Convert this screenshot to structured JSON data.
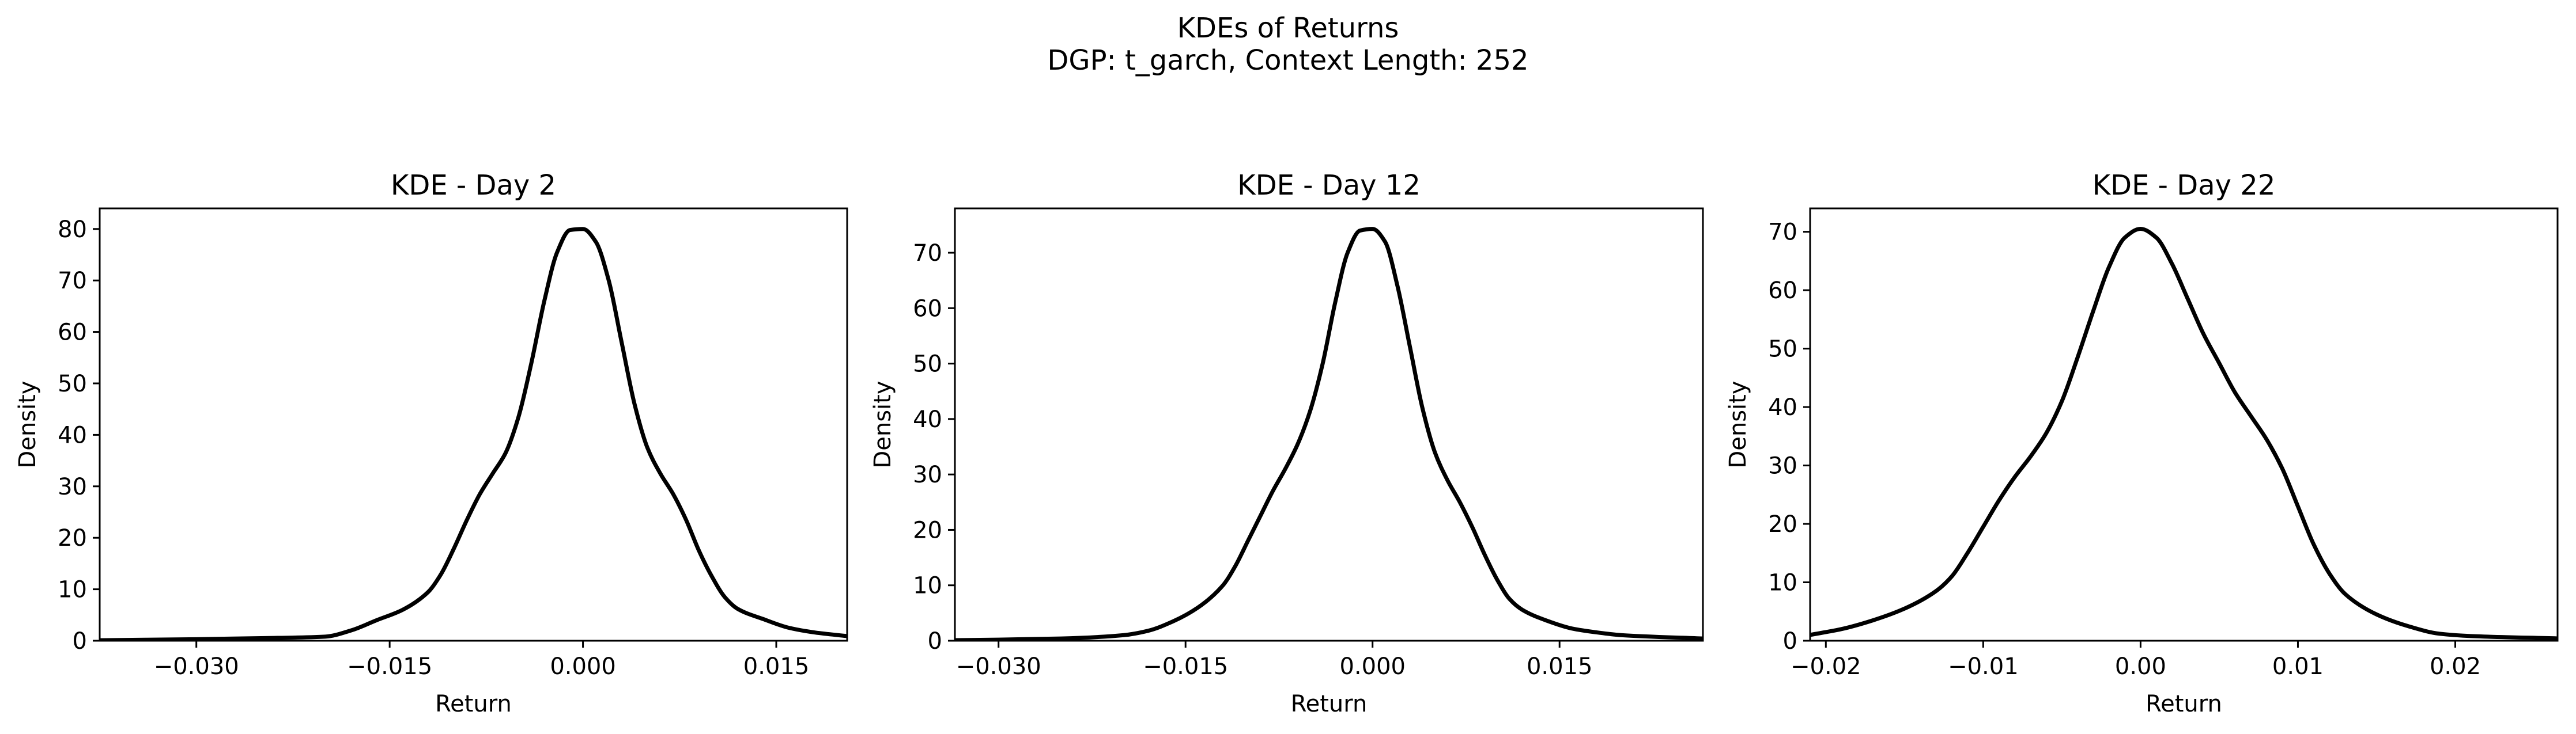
{
  "figure": {
    "title_line1": "KDEs of Returns",
    "title_line2": "DGP: t_garch, Context Length: 252"
  },
  "colors": {
    "line": "#000000",
    "background": "#ffffff"
  },
  "chart_data": [
    {
      "type": "line",
      "title": "KDE - Day 2",
      "xlabel": "Return",
      "ylabel": "Density",
      "xlim": [
        -0.0375,
        0.0205
      ],
      "ylim": [
        0,
        84
      ],
      "xticks": [
        {
          "value": -0.03,
          "label": "−0.030"
        },
        {
          "value": -0.015,
          "label": "−0.015"
        },
        {
          "value": 0.0,
          "label": "0.000"
        },
        {
          "value": 0.015,
          "label": "0.015"
        }
      ],
      "yticks": [
        {
          "value": 0,
          "label": "0"
        },
        {
          "value": 10,
          "label": "10"
        },
        {
          "value": 20,
          "label": "20"
        },
        {
          "value": 30,
          "label": "30"
        },
        {
          "value": 40,
          "label": "40"
        },
        {
          "value": 50,
          "label": "50"
        },
        {
          "value": 60,
          "label": "60"
        },
        {
          "value": 70,
          "label": "70"
        },
        {
          "value": 80,
          "label": "80"
        }
      ],
      "grid": false,
      "series": [
        {
          "x": [
            -0.0375,
            -0.03,
            -0.025,
            -0.02,
            -0.018,
            -0.016,
            -0.014,
            -0.012,
            -0.011,
            -0.01,
            -0.009,
            -0.008,
            -0.007,
            -0.006,
            -0.005,
            -0.004,
            -0.003,
            -0.002,
            -0.001,
            0.0,
            0.001,
            0.002,
            0.003,
            0.004,
            0.005,
            0.006,
            0.007,
            0.008,
            0.009,
            0.01,
            0.011,
            0.012,
            0.014,
            0.016,
            0.018,
            0.0205
          ],
          "y": [
            0.1,
            0.3,
            0.5,
            0.8,
            2.0,
            4.0,
            6.0,
            9.5,
            13,
            18,
            23.5,
            28.5,
            32.5,
            36.5,
            43.5,
            54,
            66,
            75.5,
            79.8,
            80,
            77.5,
            70,
            58,
            46,
            37.5,
            32.5,
            28.5,
            23.5,
            17.5,
            12.5,
            8.5,
            6.2,
            4.2,
            2.5,
            1.6,
            0.9
          ]
        }
      ]
    },
    {
      "type": "line",
      "title": "KDE - Day 12",
      "xlabel": "Return",
      "ylabel": "Density",
      "xlim": [
        -0.0335,
        0.0265
      ],
      "ylim": [
        0,
        78
      ],
      "xticks": [
        {
          "value": -0.03,
          "label": "−0.030"
        },
        {
          "value": -0.015,
          "label": "−0.015"
        },
        {
          "value": 0.0,
          "label": "0.000"
        },
        {
          "value": 0.015,
          "label": "0.015"
        }
      ],
      "yticks": [
        {
          "value": 0,
          "label": "0"
        },
        {
          "value": 10,
          "label": "10"
        },
        {
          "value": 20,
          "label": "20"
        },
        {
          "value": 30,
          "label": "30"
        },
        {
          "value": 40,
          "label": "40"
        },
        {
          "value": 50,
          "label": "50"
        },
        {
          "value": 60,
          "label": "60"
        },
        {
          "value": 70,
          "label": "70"
        }
      ],
      "grid": false,
      "series": [
        {
          "x": [
            -0.0335,
            -0.03,
            -0.025,
            -0.02,
            -0.018,
            -0.016,
            -0.014,
            -0.012,
            -0.011,
            -0.01,
            -0.009,
            -0.008,
            -0.007,
            -0.006,
            -0.005,
            -0.004,
            -0.003,
            -0.002,
            -0.001,
            0.0,
            0.001,
            0.002,
            0.003,
            0.004,
            0.005,
            0.006,
            0.007,
            0.008,
            0.009,
            0.01,
            0.011,
            0.012,
            0.014,
            0.016,
            0.018,
            0.02,
            0.0265
          ],
          "y": [
            0.1,
            0.2,
            0.4,
            1.0,
            1.8,
            3.5,
            6.0,
            10.0,
            13.5,
            18.0,
            22.5,
            27.0,
            31.0,
            35.5,
            41.5,
            50,
            61,
            70,
            74,
            74.3,
            72,
            64,
            53,
            42,
            34,
            29,
            25,
            20.5,
            15.5,
            11,
            7.5,
            5.6,
            3.6,
            2.2,
            1.5,
            1.0,
            0.4
          ]
        }
      ]
    },
    {
      "type": "line",
      "title": "KDE - Day 22",
      "xlabel": "Return",
      "ylabel": "Density",
      "xlim": [
        -0.021,
        0.0265
      ],
      "ylim": [
        0,
        74
      ],
      "xticks": [
        {
          "value": -0.02,
          "label": "−0.02"
        },
        {
          "value": -0.01,
          "label": "−0.01"
        },
        {
          "value": 0.0,
          "label": "0.00"
        },
        {
          "value": 0.01,
          "label": "0.01"
        },
        {
          "value": 0.02,
          "label": "0.02"
        }
      ],
      "yticks": [
        {
          "value": 0,
          "label": "0"
        },
        {
          "value": 10,
          "label": "10"
        },
        {
          "value": 20,
          "label": "20"
        },
        {
          "value": 30,
          "label": "30"
        },
        {
          "value": 40,
          "label": "40"
        },
        {
          "value": 50,
          "label": "50"
        },
        {
          "value": 60,
          "label": "60"
        },
        {
          "value": 70,
          "label": "70"
        }
      ],
      "grid": false,
      "series": [
        {
          "x": [
            -0.021,
            -0.019,
            -0.017,
            -0.015,
            -0.013,
            -0.012,
            -0.011,
            -0.01,
            -0.009,
            -0.008,
            -0.007,
            -0.006,
            -0.005,
            -0.004,
            -0.003,
            -0.002,
            -0.001,
            0.0,
            0.001,
            0.002,
            0.003,
            0.004,
            0.005,
            0.006,
            0.007,
            0.008,
            0.009,
            0.01,
            0.011,
            0.012,
            0.013,
            0.015,
            0.017,
            0.019,
            0.021,
            0.0265
          ],
          "y": [
            1.0,
            2.0,
            3.5,
            5.5,
            8.5,
            11.0,
            15.0,
            19.5,
            24.0,
            28.0,
            31.5,
            35.5,
            41.0,
            48.5,
            56.5,
            64.0,
            69.0,
            70.5,
            69.0,
            64.5,
            58.5,
            52.5,
            47.5,
            42.5,
            38.5,
            34.5,
            29.5,
            23.0,
            16.5,
            11.5,
            8.0,
            4.5,
            2.5,
            1.2,
            0.8,
            0.4
          ]
        }
      ]
    }
  ]
}
